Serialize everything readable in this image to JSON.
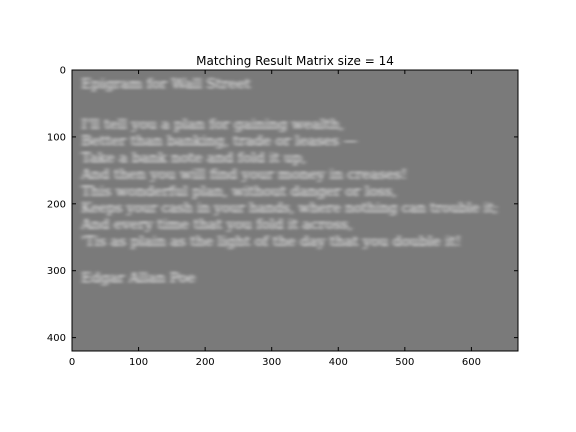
{
  "chart_data": {
    "type": "heatmap",
    "title": "Matching Result Matrix size = 14",
    "xlabel": "",
    "ylabel": "",
    "xlim": [
      0,
      670
    ],
    "ylim": [
      420,
      0
    ],
    "xticks": [
      0,
      100,
      200,
      300,
      400,
      500,
      600
    ],
    "yticks": [
      0,
      100,
      200,
      300,
      400
    ],
    "grid": false,
    "colormap": "gray",
    "background_color": "#7a7a7a",
    "text_lines": [
      {
        "text": "Epigram for Wall Street",
        "y": 22
      },
      {
        "text": "I'll tell you a plan for gaining wealth,",
        "y": 82
      },
      {
        "text": "Better than banking, trade or leases —",
        "y": 107
      },
      {
        "text": "Take a bank note and fold it up,",
        "y": 132
      },
      {
        "text": "And then you will find your money in creases!",
        "y": 157
      },
      {
        "text": "This wonderful plan, without danger or loss,",
        "y": 182
      },
      {
        "text": "Keeps your cash in your hands, where nothing can trouble it;",
        "y": 207
      },
      {
        "text": "And every time that you fold it across,",
        "y": 232
      },
      {
        "text": "'Tis as plain as the light of the day that you double it!",
        "y": 257
      },
      {
        "text": "Edgar Allan Poe",
        "y": 312
      }
    ]
  }
}
